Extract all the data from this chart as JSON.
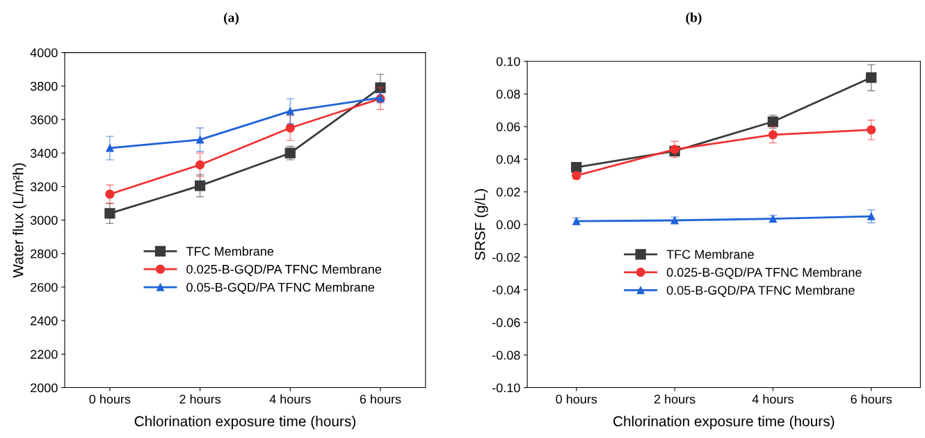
{
  "chart_data": [
    {
      "type": "line",
      "title": "(a)",
      "xlabel": "Chlorination exposure time (hours)",
      "ylabel": "Water flux (L/m²h)",
      "categories": [
        "0 hours",
        "2 hours",
        "4 hours",
        "6 hours"
      ],
      "ylim": [
        2000,
        4000
      ],
      "yticks": [
        2000,
        2200,
        2400,
        2600,
        2800,
        3000,
        3200,
        3400,
        3600,
        3800,
        4000
      ],
      "grid": false,
      "legend": "center",
      "series": [
        {
          "name": "TFC Membrane",
          "color": "#3a3a3a",
          "marker": "square",
          "values": [
            3040,
            3205,
            3400,
            3790
          ],
          "errors": [
            60,
            65,
            40,
            80
          ]
        },
        {
          "name": "0.025-B-GQD/PA TFNC Membrane",
          "color": "#f03232",
          "marker": "circle",
          "values": [
            3155,
            3330,
            3550,
            3725
          ],
          "errors": [
            55,
            70,
            75,
            65
          ]
        },
        {
          "name": "0.05-B-GQD/PA TFNC Membrane",
          "color": "#1e62d8",
          "marker": "triangle",
          "values": [
            3430,
            3480,
            3650,
            3730
          ],
          "errors": [
            70,
            70,
            75,
            30
          ]
        }
      ]
    },
    {
      "type": "line",
      "title": "(b)",
      "xlabel": "Chlorination exposure time (hours)",
      "ylabel": "SRSF (g/L)",
      "categories": [
        "0 hours",
        "2 hours",
        "4 hours",
        "6 hours"
      ],
      "ylim": [
        -0.1,
        0.1
      ],
      "yticks": [
        {
          "value": -0.1,
          "label": "-0.10"
        },
        {
          "value": -0.08,
          "label": "-0.08"
        },
        {
          "value": -0.06,
          "label": "-0.06"
        },
        {
          "value": -0.04,
          "label": "-0.04"
        },
        {
          "value": -0.02,
          "label": "-0.02"
        },
        {
          "value": 0,
          "label": "0.00"
        },
        {
          "value": 0.02,
          "label": "0.02"
        },
        {
          "value": 0.04,
          "label": "0.04"
        },
        {
          "value": 0.06,
          "label": "0.06"
        },
        {
          "value": 0.08,
          "label": "0.08"
        },
        {
          "value": 0.1,
          "label": "0.10"
        }
      ],
      "grid": false,
      "legend": "center",
      "series": [
        {
          "name": "TFC Membrane",
          "color": "#3a3a3a",
          "marker": "square",
          "values": [
            0.035,
            0.045,
            0.063,
            0.09
          ],
          "errors": [
            0.002,
            0.002,
            0.004,
            0.008
          ]
        },
        {
          "name": "0.025-B-GQD/PA TFNC Membrane",
          "color": "#f03232",
          "marker": "circle",
          "values": [
            0.03,
            0.046,
            0.055,
            0.058
          ],
          "errors": [
            0.002,
            0.005,
            0.005,
            0.006
          ]
        },
        {
          "name": "0.05-B-GQD/PA TFNC Membrane",
          "color": "#1e62d8",
          "marker": "triangle",
          "values": [
            0.002,
            0.0025,
            0.0035,
            0.005
          ],
          "errors": [
            0.002,
            0.002,
            0.002,
            0.004
          ]
        }
      ]
    }
  ]
}
